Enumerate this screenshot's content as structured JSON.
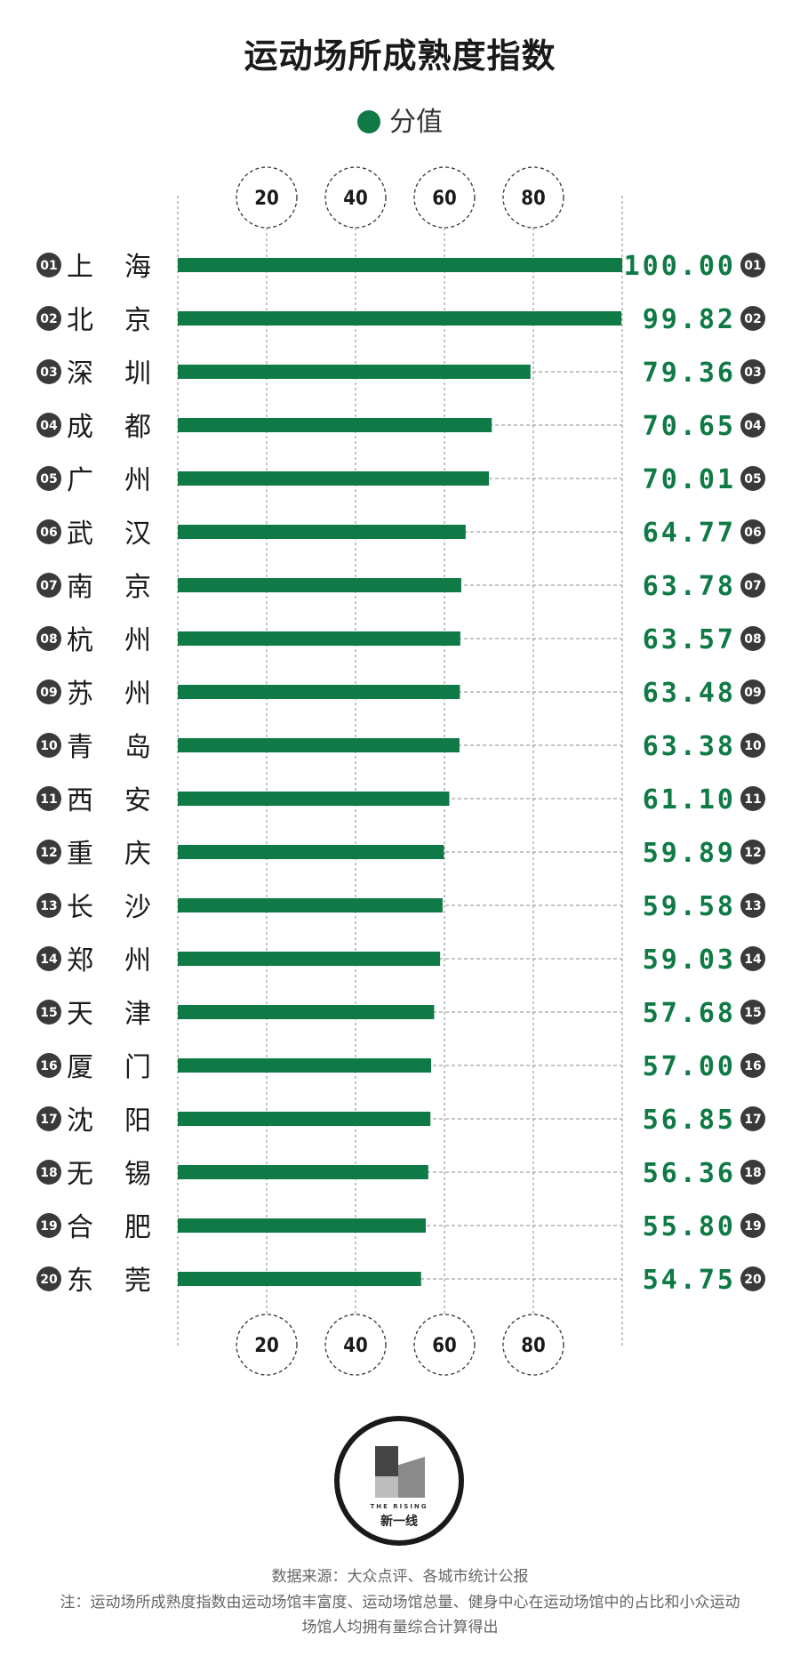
{
  "title": "运动场所成熟度指数",
  "legend_label": "分值",
  "colors": {
    "bar": "#0f7a45",
    "value_text": "#0f7a45",
    "rank_badge": "#3a3a3a",
    "gridline": "#888888"
  },
  "chart_data": {
    "type": "bar",
    "orientation": "horizontal",
    "title": "运动场所成熟度指数",
    "xlim": [
      0,
      100
    ],
    "x_ticks": [
      20,
      40,
      60,
      80
    ],
    "grid": true,
    "legend_position": "top-center",
    "ranks": [
      "01",
      "02",
      "03",
      "04",
      "05",
      "06",
      "07",
      "08",
      "09",
      "10",
      "11",
      "12",
      "13",
      "14",
      "15",
      "16",
      "17",
      "18",
      "19",
      "20"
    ],
    "categories": [
      [
        "上",
        "海"
      ],
      [
        "北",
        "京"
      ],
      [
        "深",
        "圳"
      ],
      [
        "成",
        "都"
      ],
      [
        "广",
        "州"
      ],
      [
        "武",
        "汉"
      ],
      [
        "南",
        "京"
      ],
      [
        "杭",
        "州"
      ],
      [
        "苏",
        "州"
      ],
      [
        "青",
        "岛"
      ],
      [
        "西",
        "安"
      ],
      [
        "重",
        "庆"
      ],
      [
        "长",
        "沙"
      ],
      [
        "郑",
        "州"
      ],
      [
        "天",
        "津"
      ],
      [
        "厦",
        "门"
      ],
      [
        "沈",
        "阳"
      ],
      [
        "无",
        "锡"
      ],
      [
        "合",
        "肥"
      ],
      [
        "东",
        "莞"
      ]
    ],
    "series": [
      {
        "name": "分值",
        "values": [
          100.0,
          99.82,
          79.36,
          70.65,
          70.01,
          64.77,
          63.78,
          63.57,
          63.48,
          63.38,
          61.1,
          59.89,
          59.58,
          59.03,
          57.68,
          57.0,
          56.85,
          56.36,
          55.8,
          54.75
        ],
        "labels": [
          "100.00",
          "99.82",
          "79.36",
          "70.65",
          "70.01",
          "64.77",
          "63.78",
          "63.57",
          "63.48",
          "63.38",
          "61.10",
          "59.89",
          "59.58",
          "59.03",
          "57.68",
          "57.00",
          "56.85",
          "56.36",
          "55.80",
          "54.75"
        ]
      }
    ]
  },
  "logo": {
    "brand_en": "THE RISING",
    "brand_cn": "新一线"
  },
  "source": "数据来源：大众点评、各城市统计公报",
  "note": "注：运动场所成熟度指数由运动场馆丰富度、运动场馆总量、健身中心在运动场馆中的占比和小众运动场馆人均拥有量综合计算得出"
}
